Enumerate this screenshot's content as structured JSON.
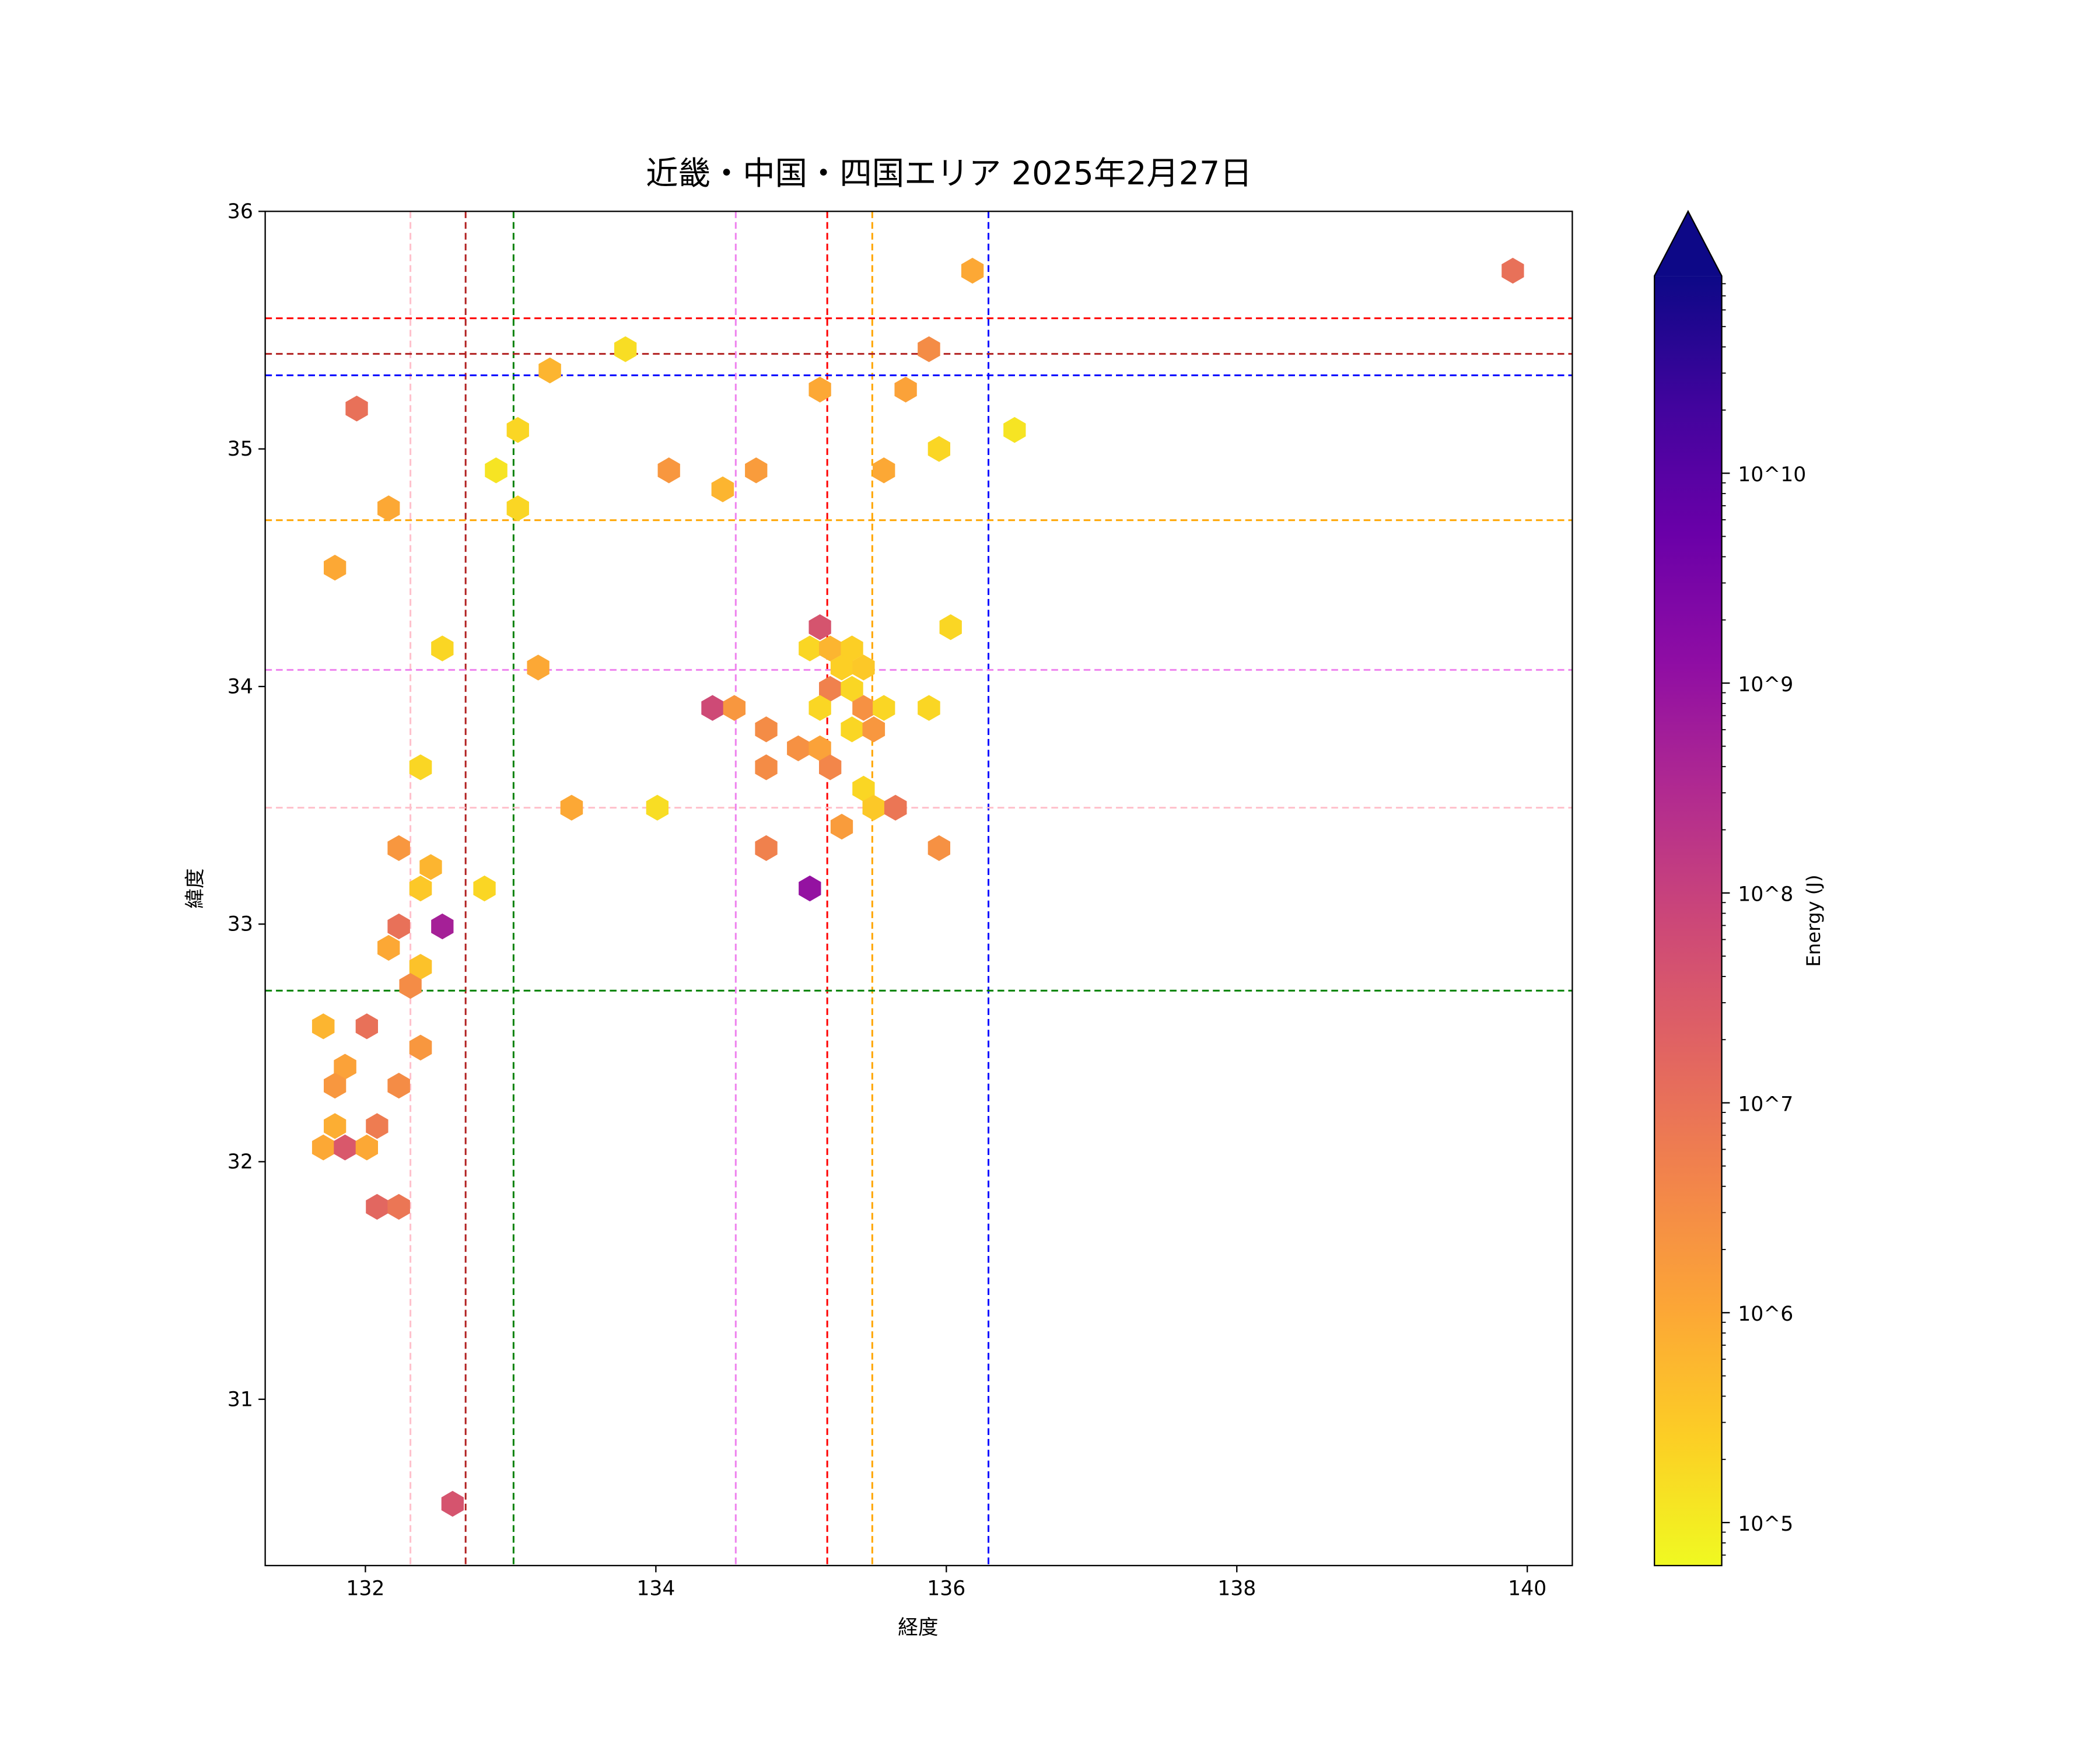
{
  "chart_data": {
    "type": "hexbin",
    "title": "近畿・中国・四国エリア 2025年2月27日",
    "xlabel": "経度",
    "ylabel": "緯度",
    "xlim": [
      131.31,
      140.31
    ],
    "ylim": [
      30.3,
      36.0
    ],
    "xticks": [
      132,
      134,
      136,
      138,
      140
    ],
    "yticks": [
      31,
      32,
      33,
      34,
      35,
      36
    ],
    "grid": false,
    "colorbar": {
      "label": "Energy (J)",
      "cmap": "plasma_r",
      "scale": "log",
      "log_range": [
        4.795,
        10.94
      ],
      "extend": "max",
      "ticks": [
        5,
        6,
        7,
        8,
        9,
        10
      ],
      "tick_labels": [
        "10^5",
        "10^6",
        "10^7",
        "10^8",
        "10^9",
        "10^10"
      ],
      "extend_color": "#0d0887"
    },
    "vlines": [
      {
        "x": 132.31,
        "color": "#ffc0cb"
      },
      {
        "x": 132.69,
        "color": "#b22222"
      },
      {
        "x": 133.02,
        "color": "#008000"
      },
      {
        "x": 134.55,
        "color": "#ee82ee"
      },
      {
        "x": 135.18,
        "color": "#ff0000"
      },
      {
        "x": 135.49,
        "color": "#ffa500"
      },
      {
        "x": 136.29,
        "color": "#0000ff"
      }
    ],
    "hlines": [
      {
        "y": 35.55,
        "color": "#ff0000"
      },
      {
        "y": 35.4,
        "color": "#b22222"
      },
      {
        "y": 35.31,
        "color": "#0000ff"
      },
      {
        "y": 34.7,
        "color": "#ffa500"
      },
      {
        "y": 34.07,
        "color": "#ee82ee"
      },
      {
        "y": 33.49,
        "color": "#ffc0cb"
      },
      {
        "y": 32.72,
        "color": "#008000"
      }
    ],
    "points_log10_energy": [
      [
        139.9,
        35.75,
        7.0
      ],
      [
        136.18,
        35.75,
        6.0
      ],
      [
        135.88,
        35.42,
        6.5
      ],
      [
        133.79,
        35.42,
        5.2
      ],
      [
        133.27,
        35.33,
        5.8
      ],
      [
        135.13,
        35.25,
        6.0
      ],
      [
        135.72,
        35.25,
        6.1
      ],
      [
        131.94,
        35.17,
        7.0
      ],
      [
        133.05,
        35.08,
        5.3
      ],
      [
        136.47,
        35.08,
        5.1
      ],
      [
        135.95,
        35.0,
        5.3
      ],
      [
        132.9,
        34.91,
        5.1
      ],
      [
        134.09,
        34.91,
        6.3
      ],
      [
        134.69,
        34.91,
        6.2
      ],
      [
        135.57,
        34.91,
        6.0
      ],
      [
        134.46,
        34.83,
        5.8
      ],
      [
        132.16,
        34.75,
        6.0
      ],
      [
        133.05,
        34.75,
        5.3
      ],
      [
        131.79,
        34.5,
        6.0
      ],
      [
        135.13,
        34.25,
        7.6
      ],
      [
        136.03,
        34.25,
        5.3
      ],
      [
        132.53,
        34.16,
        5.3
      ],
      [
        135.06,
        34.16,
        5.3
      ],
      [
        135.2,
        34.16,
        5.8
      ],
      [
        135.35,
        34.16,
        5.4
      ],
      [
        133.19,
        34.08,
        6.0
      ],
      [
        135.28,
        34.08,
        5.4
      ],
      [
        135.43,
        34.08,
        5.5
      ],
      [
        135.2,
        33.99,
        6.7
      ],
      [
        135.35,
        33.99,
        5.3
      ],
      [
        134.39,
        33.91,
        7.8
      ],
      [
        134.54,
        33.91,
        6.3
      ],
      [
        135.13,
        33.91,
        5.3
      ],
      [
        135.43,
        33.91,
        6.4
      ],
      [
        135.57,
        33.91,
        5.3
      ],
      [
        135.88,
        33.91,
        5.3
      ],
      [
        134.76,
        33.82,
        6.5
      ],
      [
        135.35,
        33.82,
        5.3
      ],
      [
        135.5,
        33.82,
        6.3
      ],
      [
        134.98,
        33.74,
        6.4
      ],
      [
        135.13,
        33.74,
        6.1
      ],
      [
        132.38,
        33.66,
        5.3
      ],
      [
        134.76,
        33.66,
        6.5
      ],
      [
        135.2,
        33.66,
        6.6
      ],
      [
        135.43,
        33.57,
        5.3
      ],
      [
        133.42,
        33.49,
        6.0
      ],
      [
        134.01,
        33.49,
        5.2
      ],
      [
        135.5,
        33.49,
        5.5
      ],
      [
        135.65,
        33.49,
        6.9
      ],
      [
        135.28,
        33.41,
        6.2
      ],
      [
        132.23,
        33.32,
        6.3
      ],
      [
        134.76,
        33.32,
        6.7
      ],
      [
        135.95,
        33.32,
        6.4
      ],
      [
        132.45,
        33.24,
        5.8
      ],
      [
        132.38,
        33.15,
        5.5
      ],
      [
        132.82,
        33.15,
        5.3
      ],
      [
        135.06,
        33.15,
        9.0
      ],
      [
        132.23,
        32.99,
        7.0
      ],
      [
        132.53,
        32.99,
        8.7
      ],
      [
        132.16,
        32.9,
        6.0
      ],
      [
        132.38,
        32.82,
        5.6
      ],
      [
        132.31,
        32.74,
        6.5
      ],
      [
        131.71,
        32.57,
        5.8
      ],
      [
        132.01,
        32.57,
        7.0
      ],
      [
        132.38,
        32.48,
        6.3
      ],
      [
        131.86,
        32.4,
        6.1
      ],
      [
        131.79,
        32.32,
        6.3
      ],
      [
        132.23,
        32.32,
        6.5
      ],
      [
        131.79,
        32.15,
        5.9
      ],
      [
        132.08,
        32.15,
        6.8
      ],
      [
        131.71,
        32.06,
        6.0
      ],
      [
        131.86,
        32.06,
        7.5
      ],
      [
        132.01,
        32.06,
        6.0
      ],
      [
        132.08,
        31.81,
        7.2
      ],
      [
        132.23,
        31.81,
        6.9
      ],
      [
        132.6,
        30.56,
        7.6
      ]
    ]
  }
}
